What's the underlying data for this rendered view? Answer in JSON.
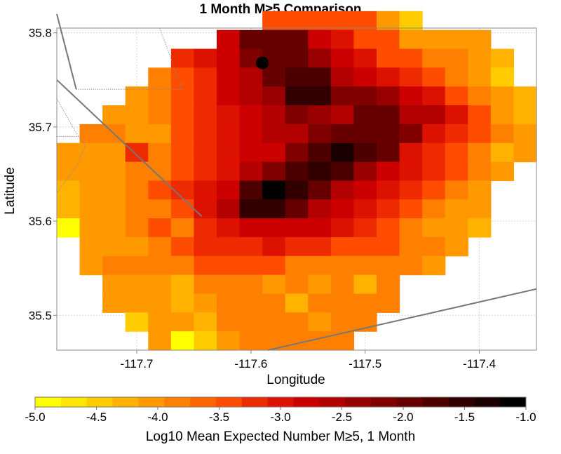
{
  "chart_data": {
    "type": "heatmap",
    "title": "1 Month M≥5 Comparison",
    "xlabel": "Longitude",
    "ylabel": "Latitude",
    "xlim": [
      -117.77,
      -117.35
    ],
    "ylim": [
      35.463,
      35.805
    ],
    "x_ticks": [
      -117.7,
      -117.6,
      -117.5,
      -117.4
    ],
    "x_tick_labels": [
      "-117.7",
      "-117.6",
      "-117.5",
      "-117.4"
    ],
    "y_ticks": [
      35.5,
      35.6,
      35.7,
      35.8
    ],
    "y_tick_labels": [
      "35.5",
      "35.6",
      "35.7",
      "35.8"
    ],
    "grid": true,
    "cell_size_deg": 0.02,
    "grid_origin": {
      "lon": -117.77,
      "lat": 35.463
    },
    "row_order": "top-to-bottom (first row is the northernmost)",
    "values_note": "Log10 mean expected number M≥5 in 1 month; null = no data",
    "values": [
      [
        null,
        null,
        null,
        null,
        null,
        null,
        null,
        null,
        null,
        -3.5,
        -3.5,
        -3.5,
        -3.5,
        -3.5,
        -4.0,
        -4.5,
        null,
        null,
        null,
        null,
        null
      ],
      [
        null,
        null,
        null,
        null,
        null,
        null,
        null,
        -2.8,
        -2.0,
        -2.0,
        -2.0,
        -2.8,
        -3.0,
        -3.5,
        -3.5,
        -4.0,
        -4.0,
        -4.0,
        -4.0,
        null,
        null
      ],
      [
        null,
        null,
        null,
        null,
        null,
        -3.2,
        -3.0,
        -2.8,
        -2.2,
        -2.0,
        -2.0,
        -2.3,
        -2.8,
        -3.0,
        -3.5,
        -3.5,
        -3.8,
        -3.8,
        -4.0,
        -4.3,
        null
      ],
      [
        null,
        null,
        null,
        null,
        -3.8,
        -3.5,
        -3.2,
        -2.8,
        -2.5,
        -1.9,
        -1.7,
        -1.8,
        -2.5,
        -2.8,
        -3.0,
        -3.3,
        -3.5,
        -3.8,
        -4.0,
        -4.5,
        null
      ],
      [
        null,
        null,
        null,
        -4.0,
        -3.8,
        -3.5,
        -3.2,
        -2.8,
        -2.5,
        -2.3,
        -1.5,
        -1.6,
        -2.1,
        -2.2,
        -2.4,
        -2.8,
        -3.0,
        -3.5,
        -3.8,
        -4.0,
        -4.3
      ],
      [
        null,
        null,
        -4.0,
        -4.0,
        -3.8,
        -3.5,
        -3.2,
        -3.0,
        -2.8,
        -2.5,
        -2.1,
        -2.3,
        -2.5,
        -2.0,
        -1.9,
        -2.5,
        -2.5,
        -3.0,
        -3.5,
        -4.0,
        -4.3
      ],
      [
        null,
        -3.8,
        -3.8,
        -4.0,
        -4.0,
        -3.5,
        -3.2,
        -3.0,
        -2.8,
        -2.5,
        -2.5,
        -2.2,
        -2.0,
        -1.9,
        -1.9,
        -2.2,
        -3.0,
        -3.3,
        -3.5,
        -3.8,
        -4.0
      ],
      [
        -4.0,
        -4.0,
        -4.0,
        -3.3,
        -3.8,
        -3.5,
        -3.2,
        -3.0,
        -2.8,
        -2.8,
        -2.2,
        -1.8,
        -1.3,
        -1.8,
        -2.0,
        -3.0,
        -3.2,
        -3.5,
        -3.8,
        -4.3,
        -4.0
      ],
      [
        -4.0,
        -4.0,
        -4.0,
        -3.8,
        -3.8,
        -3.5,
        -3.2,
        -3.0,
        -2.5,
        -2.2,
        -1.8,
        -1.5,
        -1.8,
        -2.3,
        -2.7,
        -3.0,
        -3.3,
        -3.5,
        -3.8,
        -4.0,
        null
      ],
      [
        -4.3,
        -4.0,
        -4.0,
        -3.8,
        -3.5,
        -3.3,
        -3.0,
        -2.8,
        -1.8,
        -1.0,
        -1.5,
        -2.0,
        -2.5,
        -2.8,
        -3.0,
        -3.2,
        -3.5,
        -3.8,
        -4.0,
        null,
        null
      ],
      [
        -4.3,
        -4.0,
        -4.0,
        -3.8,
        -3.8,
        -3.5,
        -3.0,
        -2.5,
        -1.6,
        -1.5,
        -2.0,
        -2.5,
        -2.8,
        -3.0,
        -3.2,
        -3.5,
        -3.8,
        -4.0,
        -4.0,
        null,
        null
      ],
      [
        -4.8,
        -4.0,
        -4.0,
        -3.8,
        -3.5,
        -3.8,
        -3.2,
        -3.0,
        -2.7,
        -2.7,
        -2.7,
        -2.8,
        -3.0,
        -3.2,
        -3.5,
        -3.8,
        -4.0,
        -4.0,
        -4.3,
        null,
        null
      ],
      [
        null,
        -4.0,
        -4.0,
        -4.0,
        -3.8,
        -3.5,
        -3.2,
        -3.2,
        -3.2,
        -3.0,
        -3.3,
        -3.3,
        -3.5,
        -3.5,
        -3.5,
        -3.8,
        -3.8,
        -4.0,
        null,
        null,
        null
      ],
      [
        null,
        -4.0,
        -3.8,
        -3.8,
        -3.8,
        -3.8,
        -3.5,
        -3.5,
        -3.5,
        -3.5,
        -3.8,
        -3.8,
        -3.8,
        -3.8,
        -3.8,
        -3.8,
        -4.0,
        null,
        null,
        null,
        null
      ],
      [
        null,
        null,
        -4.0,
        -4.0,
        -4.0,
        -4.3,
        -3.8,
        -3.8,
        -3.8,
        -4.0,
        -3.8,
        -4.0,
        -3.8,
        -4.3,
        -3.8,
        null,
        null,
        null,
        null,
        null,
        null
      ],
      [
        null,
        null,
        -4.0,
        -4.0,
        -4.0,
        -4.3,
        -4.0,
        -3.8,
        -3.8,
        -3.8,
        -4.3,
        -3.8,
        -3.8,
        -3.8,
        -3.8,
        null,
        null,
        null,
        null,
        null,
        null
      ],
      [
        null,
        null,
        null,
        -4.5,
        -4.0,
        -4.0,
        -4.3,
        -3.8,
        -3.8,
        -3.8,
        -3.8,
        -4.0,
        -3.8,
        -3.8,
        null,
        null,
        null,
        null,
        null,
        null,
        null
      ],
      [
        null,
        null,
        null,
        null,
        -4.0,
        -5.0,
        -4.5,
        -4.0,
        -3.8,
        -3.8,
        -3.8,
        -3.8,
        -3.8,
        null,
        null,
        null,
        null,
        null,
        null,
        null,
        null
      ]
    ],
    "marker": {
      "lon": -117.59,
      "lat": 35.768,
      "color": "#000000"
    },
    "colorbar": {
      "min": -5.0,
      "max": -1.0,
      "ticks": [
        -5.0,
        -4.5,
        -4.0,
        -3.5,
        -3.0,
        -2.5,
        -2.0,
        -1.5,
        -1.0
      ],
      "tick_labels": [
        "-5.0",
        "-4.5",
        "-4.0",
        "-3.5",
        "-3.0",
        "-2.5",
        "-2.0",
        "-1.5",
        "-1.0"
      ],
      "label": "Log10 Mean Expected Number M≥5, 1 Month",
      "colors": [
        "#ffff00",
        "#ffe600",
        "#ffcc00",
        "#ffb300",
        "#ff9900",
        "#ff8000",
        "#ff6600",
        "#ff4d00",
        "#ee2a00",
        "#dd1100",
        "#cc0000",
        "#b30000",
        "#990000",
        "#800000",
        "#660000",
        "#4d0000",
        "#330000",
        "#1a0000",
        "#000000"
      ]
    },
    "faults": [
      {
        "name": "fault-1",
        "color": "#777777",
        "points": [
          [
            -117.77,
            35.75
          ],
          [
            -117.643,
            35.605
          ]
        ]
      },
      {
        "name": "fault-2",
        "color": "#777777",
        "points": [
          [
            -117.77,
            35.82
          ],
          [
            -117.753,
            35.74
          ]
        ]
      },
      {
        "name": "fault-3",
        "color": "#777777",
        "points": [
          [
            -117.585,
            35.463
          ],
          [
            -117.35,
            35.528
          ]
        ]
      }
    ],
    "boundaries": [
      {
        "name": "boundary-1",
        "points": [
          [
            -117.753,
            35.74
          ],
          [
            -117.66,
            35.74
          ],
          [
            -117.68,
            35.805
          ]
        ]
      },
      {
        "name": "boundary-2",
        "points": [
          [
            -117.77,
            35.69
          ],
          [
            -117.751,
            35.69
          ],
          [
            -117.745,
            35.68
          ],
          [
            -117.752,
            35.66
          ],
          [
            -117.77,
            35.63
          ]
        ]
      },
      {
        "name": "boundary-3",
        "points": [
          [
            -117.77,
            35.73
          ],
          [
            -117.756,
            35.7
          ],
          [
            -117.751,
            35.69
          ]
        ]
      }
    ]
  }
}
